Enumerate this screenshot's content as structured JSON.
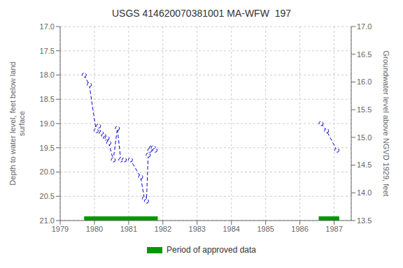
{
  "chart_data": {
    "type": "line",
    "title": "USGS 414620070381001 MA-WFW  197",
    "y_label": "Depth to water level, feet below land\nsurface",
    "y2_label": "Groundwater level above NGVD 1929, feet",
    "xlim": [
      1979,
      1987.5
    ],
    "xticks": [
      1979,
      1980,
      1981,
      1982,
      1983,
      1984,
      1985,
      1986,
      1987
    ],
    "ylim": [
      21.0,
      17.0
    ],
    "yticks": [
      {
        "value": 17.0,
        "label": "17.0"
      },
      17.5,
      {
        "value": 18.0,
        "label": "18.0"
      },
      18.5,
      {
        "value": 19.0,
        "label": "19.0"
      },
      19.5,
      {
        "value": 20.0,
        "label": "20.0"
      },
      20.5,
      {
        "value": 21.0,
        "label": "21.0"
      }
    ],
    "y2lim": [
      13.5,
      17.0
    ],
    "y2ticks": [
      {
        "value": 17.0,
        "label": "17.0"
      },
      16.5,
      {
        "value": 16.0,
        "label": "16.0"
      },
      15.5,
      {
        "value": 15.0,
        "label": "15.0"
      },
      14.5,
      {
        "value": 14.0,
        "label": "14.0"
      },
      13.5
    ],
    "grid": true,
    "series": [
      {
        "x": [
          1979.7,
          1979.85,
          1980.05,
          1980.12,
          1980.2,
          1980.27,
          1980.32,
          1980.37,
          1980.42,
          1980.55,
          1980.67,
          1980.77,
          1980.87,
          1981.05,
          1981.35,
          1981.46,
          1981.52,
          1981.57,
          1981.62,
          1981.67,
          1981.72,
          1981.77
        ],
        "values": [
          18.0,
          18.2,
          19.15,
          19.05,
          19.2,
          19.25,
          19.3,
          19.3,
          19.4,
          19.75,
          19.1,
          19.75,
          19.75,
          19.75,
          20.1,
          20.55,
          20.6,
          19.65,
          19.55,
          19.5,
          19.5,
          19.55
        ],
        "color": "#0000cc",
        "line_style": "dashed",
        "marker": "circle"
      },
      {
        "x": [
          1986.62,
          1986.78,
          1987.08
        ],
        "values": [
          19.0,
          19.15,
          19.55
        ],
        "color": "#0000cc",
        "line_style": "dashed",
        "marker": "circle"
      }
    ],
    "approved_periods": {
      "name": "Period of approved data",
      "color": "#009900",
      "ranges": [
        [
          1979.7,
          1981.85
        ],
        [
          1986.55,
          1987.15
        ]
      ]
    }
  }
}
